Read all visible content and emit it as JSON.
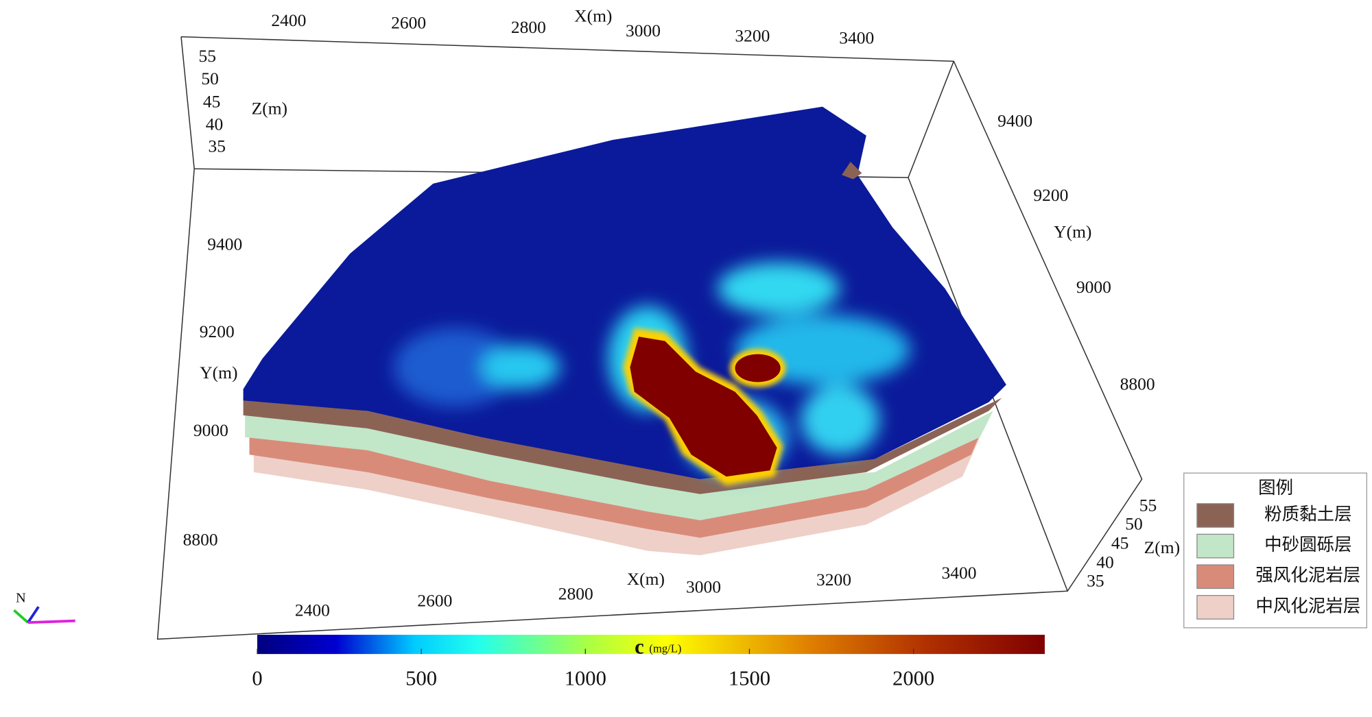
{
  "top_x_axis": {
    "label": "X(m)",
    "ticks": [
      2400,
      2600,
      2800,
      3000,
      3200,
      3400
    ]
  },
  "top_z_axis": {
    "label": "Z(m)",
    "ticks": [
      55,
      50,
      45,
      40,
      35
    ]
  },
  "left_y_axis": {
    "label": "Y(m)",
    "ticks": [
      9400,
      9200,
      9000,
      8800
    ]
  },
  "right_y_axis": {
    "label": "Y(m)",
    "ticks": [
      9400,
      9200,
      9000,
      8800
    ]
  },
  "right_z_axis": {
    "label": "Z(m)",
    "ticks": [
      55,
      50,
      45,
      40,
      35
    ]
  },
  "bottom_x_axis": {
    "label": "X(m)",
    "ticks": [
      2400,
      2600,
      2800,
      3000,
      3200,
      3400
    ]
  },
  "colorbar": {
    "title": "c",
    "unit": "(mg/L)",
    "range": [
      0,
      2400
    ],
    "ticks": [
      0,
      500,
      1000,
      1500,
      2000
    ]
  },
  "legend": {
    "title": "图例",
    "items": [
      {
        "label": "粉质黏土层",
        "color": "#8b6355"
      },
      {
        "label": "中砂圆砾层",
        "color": "#c2e6c8"
      },
      {
        "label": "强风化泥岩层",
        "color": "#d98b7a"
      },
      {
        "label": "中风化泥岩层",
        "color": "#eed0c8"
      }
    ]
  },
  "compass": "N"
}
